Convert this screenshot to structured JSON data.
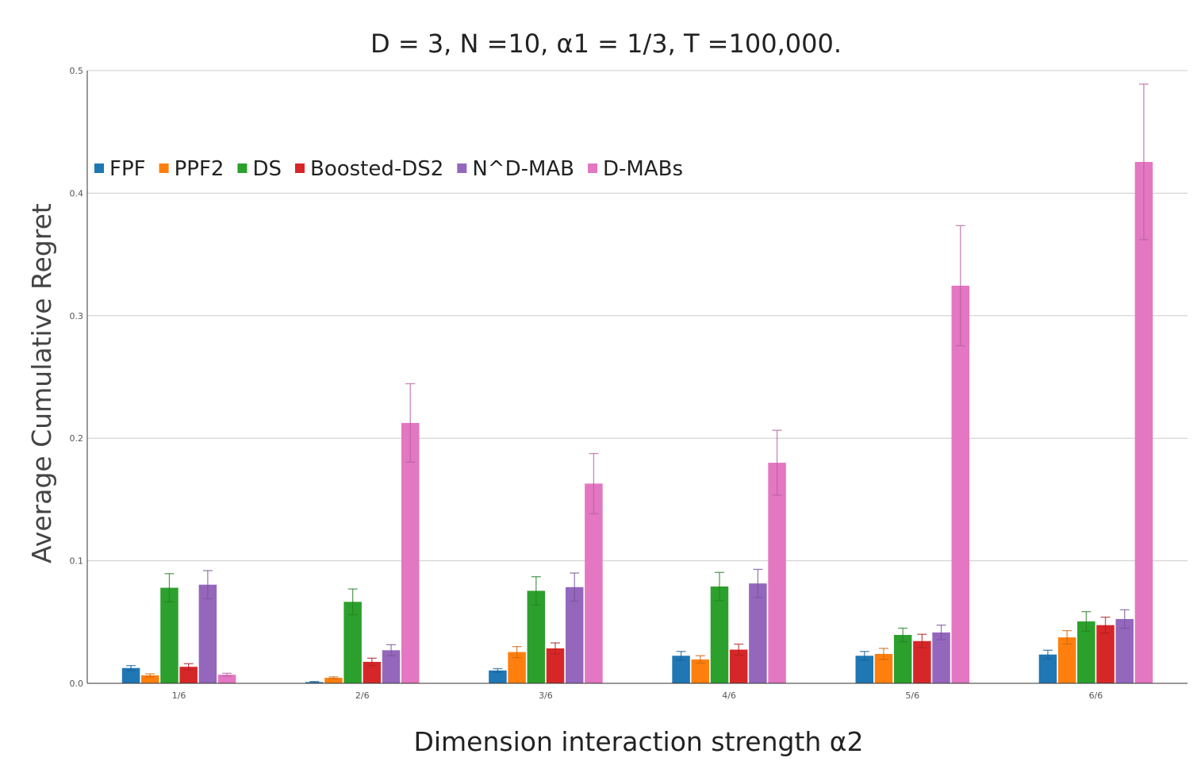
{
  "chart_data": {
    "type": "bar",
    "title": "D = 3,  N =10, α1 = 1/3, T =100,000.",
    "xlabel": "Dimension interaction strength α2",
    "ylabel": "Average Cumulative Regret",
    "ylim": [
      0,
      0.5
    ],
    "yticks": [
      "0.0",
      "0.1",
      "0.2",
      "0.3",
      "0.4",
      "0.5"
    ],
    "grid": true,
    "legend_position": "top-left",
    "categories": [
      "1/6",
      "2/6",
      "3/6",
      "4/6",
      "5/6",
      "6/6"
    ],
    "series": [
      {
        "name": "FPF",
        "color": "#1f77b4",
        "values": [
          0.0125,
          0.001,
          0.0105,
          0.0225,
          0.0225,
          0.0235
        ],
        "errors": [
          0.002,
          0.0005,
          0.0015,
          0.0035,
          0.0035,
          0.0035
        ]
      },
      {
        "name": "PPF2",
        "color": "#ff7f0e",
        "values": [
          0.0065,
          0.0045,
          0.0255,
          0.0195,
          0.024,
          0.0375
        ],
        "errors": [
          0.0012,
          0.0008,
          0.0045,
          0.003,
          0.0045,
          0.0055
        ]
      },
      {
        "name": "DS",
        "color": "#2ca02c",
        "values": [
          0.078,
          0.0665,
          0.0755,
          0.079,
          0.0395,
          0.0505
        ],
        "errors": [
          0.0115,
          0.0105,
          0.0115,
          0.0115,
          0.0055,
          0.008
        ]
      },
      {
        "name": "Boosted-DS2",
        "color": "#d62728",
        "values": [
          0.0135,
          0.0175,
          0.0285,
          0.0275,
          0.0345,
          0.0475
        ],
        "errors": [
          0.0025,
          0.003,
          0.0045,
          0.0045,
          0.0055,
          0.0065
        ]
      },
      {
        "name": "N^D-MAB",
        "color": "#9467bd",
        "values": [
          0.0805,
          0.027,
          0.0785,
          0.0815,
          0.0415,
          0.0525
        ],
        "errors": [
          0.0115,
          0.0045,
          0.0115,
          0.0115,
          0.006,
          0.0075
        ]
      },
      {
        "name": "D-MABs",
        "color": "#e377c2",
        "values": [
          0.007,
          0.2125,
          0.163,
          0.18,
          0.3245,
          0.4255
        ],
        "errors": [
          0.0012,
          0.032,
          0.0245,
          0.0265,
          0.049,
          0.0635
        ]
      }
    ]
  }
}
